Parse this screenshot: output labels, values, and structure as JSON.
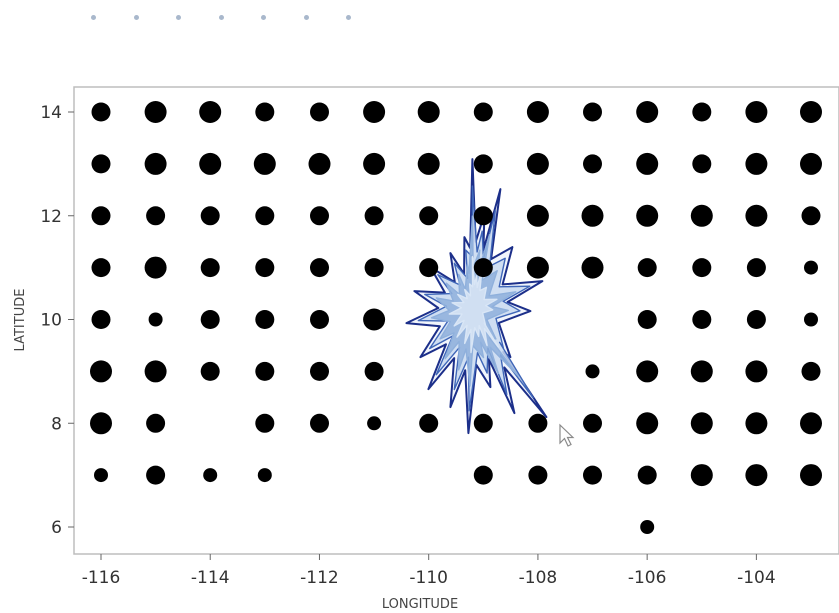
{
  "pager": {
    "dot_count": 7,
    "color": "#a9b8cc"
  },
  "chart_data": {
    "type": "scatter",
    "title": "",
    "xlabel": "LONGITUDE",
    "ylabel": "LATITUDE",
    "xlim": [
      -116.3,
      -102.8
    ],
    "ylim": [
      5.6,
      14.5
    ],
    "x_ticks": [
      -116,
      -114,
      -112,
      -110,
      -108,
      -106,
      -104
    ],
    "y_ticks": [
      6,
      8,
      10,
      12,
      14
    ],
    "grid": false,
    "legend": "none",
    "point_color": "#000000",
    "size_note": "marker size varies per point (relative 1-3)",
    "points": [
      {
        "x": -116,
        "y": 14,
        "s": 2
      },
      {
        "x": -115,
        "y": 14,
        "s": 3
      },
      {
        "x": -114,
        "y": 14,
        "s": 3
      },
      {
        "x": -113,
        "y": 14,
        "s": 2
      },
      {
        "x": -112,
        "y": 14,
        "s": 2
      },
      {
        "x": -111,
        "y": 14,
        "s": 3
      },
      {
        "x": -110,
        "y": 14,
        "s": 3
      },
      {
        "x": -109,
        "y": 14,
        "s": 2
      },
      {
        "x": -108,
        "y": 14,
        "s": 3
      },
      {
        "x": -107,
        "y": 14,
        "s": 2
      },
      {
        "x": -106,
        "y": 14,
        "s": 3
      },
      {
        "x": -105,
        "y": 14,
        "s": 2
      },
      {
        "x": -104,
        "y": 14,
        "s": 3
      },
      {
        "x": -103,
        "y": 14,
        "s": 3
      },
      {
        "x": -116,
        "y": 13,
        "s": 2
      },
      {
        "x": -115,
        "y": 13,
        "s": 3
      },
      {
        "x": -114,
        "y": 13,
        "s": 3
      },
      {
        "x": -113,
        "y": 13,
        "s": 3
      },
      {
        "x": -112,
        "y": 13,
        "s": 3
      },
      {
        "x": -111,
        "y": 13,
        "s": 3
      },
      {
        "x": -110,
        "y": 13,
        "s": 3
      },
      {
        "x": -109,
        "y": 13,
        "s": 2
      },
      {
        "x": -108,
        "y": 13,
        "s": 3
      },
      {
        "x": -107,
        "y": 13,
        "s": 2
      },
      {
        "x": -106,
        "y": 13,
        "s": 3
      },
      {
        "x": -105,
        "y": 13,
        "s": 2
      },
      {
        "x": -104,
        "y": 13,
        "s": 3
      },
      {
        "x": -103,
        "y": 13,
        "s": 3
      },
      {
        "x": -116,
        "y": 12,
        "s": 2
      },
      {
        "x": -115,
        "y": 12,
        "s": 2
      },
      {
        "x": -114,
        "y": 12,
        "s": 2
      },
      {
        "x": -113,
        "y": 12,
        "s": 2
      },
      {
        "x": -112,
        "y": 12,
        "s": 2
      },
      {
        "x": -111,
        "y": 12,
        "s": 2
      },
      {
        "x": -110,
        "y": 12,
        "s": 2
      },
      {
        "x": -109,
        "y": 12,
        "s": 2
      },
      {
        "x": -108,
        "y": 12,
        "s": 3
      },
      {
        "x": -107,
        "y": 12,
        "s": 3
      },
      {
        "x": -106,
        "y": 12,
        "s": 3
      },
      {
        "x": -105,
        "y": 12,
        "s": 3
      },
      {
        "x": -104,
        "y": 12,
        "s": 3
      },
      {
        "x": -103,
        "y": 12,
        "s": 2
      },
      {
        "x": -116,
        "y": 11,
        "s": 2
      },
      {
        "x": -115,
        "y": 11,
        "s": 3
      },
      {
        "x": -114,
        "y": 11,
        "s": 2
      },
      {
        "x": -113,
        "y": 11,
        "s": 2
      },
      {
        "x": -112,
        "y": 11,
        "s": 2
      },
      {
        "x": -111,
        "y": 11,
        "s": 2
      },
      {
        "x": -110,
        "y": 11,
        "s": 2
      },
      {
        "x": -109,
        "y": 11,
        "s": 2
      },
      {
        "x": -108,
        "y": 11,
        "s": 3
      },
      {
        "x": -107,
        "y": 11,
        "s": 3
      },
      {
        "x": -106,
        "y": 11,
        "s": 2
      },
      {
        "x": -105,
        "y": 11,
        "s": 2
      },
      {
        "x": -104,
        "y": 11,
        "s": 2
      },
      {
        "x": -103,
        "y": 11,
        "s": 1
      },
      {
        "x": -116,
        "y": 10,
        "s": 2
      },
      {
        "x": -115,
        "y": 10,
        "s": 1
      },
      {
        "x": -114,
        "y": 10,
        "s": 2
      },
      {
        "x": -113,
        "y": 10,
        "s": 2
      },
      {
        "x": -112,
        "y": 10,
        "s": 2
      },
      {
        "x": -111,
        "y": 10,
        "s": 3
      },
      {
        "x": -106,
        "y": 10,
        "s": 2
      },
      {
        "x": -105,
        "y": 10,
        "s": 2
      },
      {
        "x": -104,
        "y": 10,
        "s": 2
      },
      {
        "x": -103,
        "y": 10,
        "s": 1
      },
      {
        "x": -116,
        "y": 9,
        "s": 3
      },
      {
        "x": -115,
        "y": 9,
        "s": 3
      },
      {
        "x": -114,
        "y": 9,
        "s": 2
      },
      {
        "x": -113,
        "y": 9,
        "s": 2
      },
      {
        "x": -112,
        "y": 9,
        "s": 2
      },
      {
        "x": -111,
        "y": 9,
        "s": 2
      },
      {
        "x": -107,
        "y": 9,
        "s": 1
      },
      {
        "x": -106,
        "y": 9,
        "s": 3
      },
      {
        "x": -105,
        "y": 9,
        "s": 3
      },
      {
        "x": -104,
        "y": 9,
        "s": 3
      },
      {
        "x": -103,
        "y": 9,
        "s": 2
      },
      {
        "x": -116,
        "y": 8,
        "s": 3
      },
      {
        "x": -115,
        "y": 8,
        "s": 2
      },
      {
        "x": -113,
        "y": 8,
        "s": 2
      },
      {
        "x": -112,
        "y": 8,
        "s": 2
      },
      {
        "x": -111,
        "y": 8,
        "s": 1
      },
      {
        "x": -110,
        "y": 8,
        "s": 2
      },
      {
        "x": -109,
        "y": 8,
        "s": 2
      },
      {
        "x": -108,
        "y": 8,
        "s": 2
      },
      {
        "x": -107,
        "y": 8,
        "s": 2
      },
      {
        "x": -106,
        "y": 8,
        "s": 3
      },
      {
        "x": -105,
        "y": 8,
        "s": 3
      },
      {
        "x": -104,
        "y": 8,
        "s": 3
      },
      {
        "x": -103,
        "y": 8,
        "s": 3
      },
      {
        "x": -116,
        "y": 7,
        "s": 1
      },
      {
        "x": -115,
        "y": 7,
        "s": 2
      },
      {
        "x": -114,
        "y": 7,
        "s": 1
      },
      {
        "x": -113,
        "y": 7,
        "s": 1
      },
      {
        "x": -109,
        "y": 7,
        "s": 2
      },
      {
        "x": -108,
        "y": 7,
        "s": 2
      },
      {
        "x": -107,
        "y": 7,
        "s": 2
      },
      {
        "x": -106,
        "y": 7,
        "s": 2
      },
      {
        "x": -105,
        "y": 7,
        "s": 3
      },
      {
        "x": -104,
        "y": 7,
        "s": 3
      },
      {
        "x": -103,
        "y": 7,
        "s": 3
      },
      {
        "x": -106,
        "y": 6,
        "s": 1
      }
    ],
    "overlay": {
      "type": "contour",
      "colors": [
        "#1c2f8a",
        "#3f66b8",
        "#8fb0dc",
        "#d9e6f6"
      ],
      "center": [
        -109.2,
        10.2
      ]
    }
  }
}
